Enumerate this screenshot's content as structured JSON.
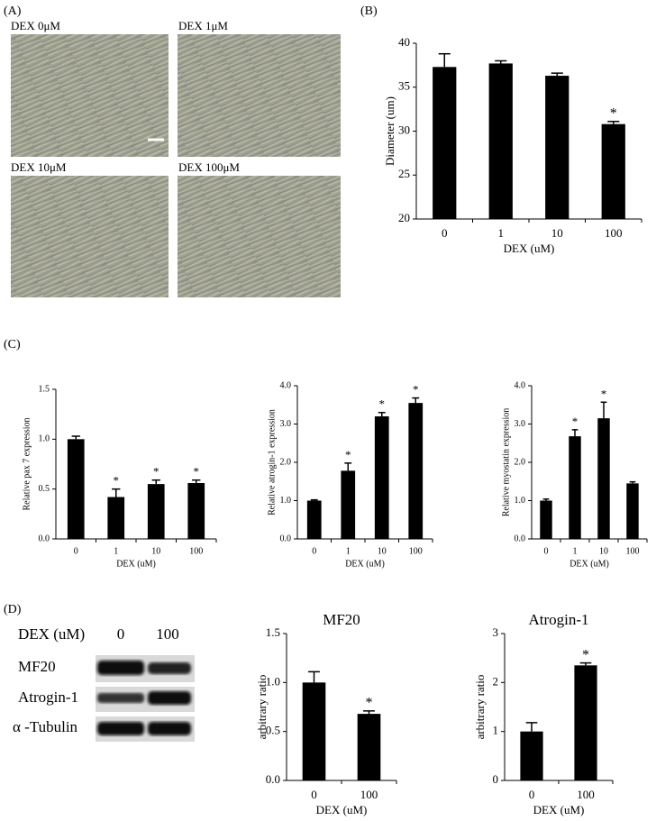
{
  "panel_labels": [
    "(A)",
    "(B)",
    "(C)",
    "(D)"
  ],
  "micrographs": [
    "DEX 0μM",
    "DEX 1μM",
    "DEX 10μM",
    "DEX 100μM"
  ],
  "blot": {
    "header": "DEX (uM)",
    "lanes": [
      "0",
      "100"
    ],
    "rows": [
      "MF20",
      "Atrogin-1",
      "α -Tubulin"
    ]
  },
  "chart_data": [
    {
      "type": "bar",
      "ylabel": "Diameter (um)",
      "xlabel": "DEX (uM)",
      "color": "#000000",
      "categories": [
        "0",
        "1",
        "10",
        "100"
      ],
      "values": [
        37.3,
        37.7,
        36.3,
        30.8
      ],
      "errors": [
        1.5,
        0.3,
        0.3,
        0.3
      ],
      "significance": [
        null,
        null,
        null,
        "*"
      ],
      "ylim": [
        20,
        40
      ],
      "yticks": [
        20,
        25,
        30,
        35,
        40
      ]
    },
    {
      "type": "bar",
      "ylabel": "Relative pax 7 expression",
      "xlabel": "DEX (uM)",
      "color": "#000000",
      "categories": [
        "0",
        "1",
        "10",
        "100"
      ],
      "values": [
        1.0,
        0.42,
        0.55,
        0.56
      ],
      "errors": [
        0.03,
        0.08,
        0.04,
        0.03
      ],
      "significance": [
        null,
        "*",
        "*",
        "*"
      ],
      "ylim": [
        0,
        1.5
      ],
      "yticks": [
        {
          "value": 0,
          "label": "0.0"
        },
        0.5,
        {
          "value": 1,
          "label": "1.0"
        },
        1.5
      ]
    },
    {
      "type": "bar",
      "ylabel": "Relative atrogin-1 expression",
      "xlabel": "DEX (uM)",
      "color": "#000000",
      "categories": [
        "0",
        "1",
        "10",
        "100"
      ],
      "values": [
        1.0,
        1.78,
        3.2,
        3.55
      ],
      "errors": [
        0.02,
        0.2,
        0.1,
        0.13
      ],
      "significance": [
        null,
        "*",
        "*",
        "*"
      ],
      "ylim": [
        0,
        4
      ],
      "yticks": [
        {
          "value": 0,
          "label": "0.0"
        },
        {
          "value": 1,
          "label": "1.0"
        },
        {
          "value": 2,
          "label": "2.0"
        },
        {
          "value": 3,
          "label": "3.0"
        },
        {
          "value": 4,
          "label": "4.0"
        }
      ]
    },
    {
      "type": "bar",
      "ylabel": "Relative myostatin expression",
      "xlabel": "DEX (uM)",
      "color": "#000000",
      "categories": [
        "0",
        "1",
        "10",
        "100"
      ],
      "values": [
        1.0,
        2.68,
        3.15,
        1.45
      ],
      "errors": [
        0.04,
        0.17,
        0.42,
        0.04
      ],
      "significance": [
        null,
        "*",
        "*",
        null
      ],
      "ylim": [
        0,
        4
      ],
      "yticks": [
        {
          "value": 0,
          "label": "0.0"
        },
        {
          "value": 1,
          "label": "1.0"
        },
        {
          "value": 2,
          "label": "2.0"
        },
        {
          "value": 3,
          "label": "3.0"
        },
        {
          "value": 4,
          "label": "4.0"
        }
      ]
    },
    {
      "type": "bar",
      "title": "MF20",
      "ylabel": "arbitrary ratio",
      "xlabel": "DEX (uM)",
      "color": "#000000",
      "categories": [
        "0",
        "100"
      ],
      "values": [
        1.0,
        0.68
      ],
      "errors": [
        0.11,
        0.03
      ],
      "significance": [
        null,
        "*"
      ],
      "ylim": [
        0,
        1.5
      ],
      "yticks": [
        {
          "value": 0,
          "label": "0.0"
        },
        0.5,
        {
          "value": 1,
          "label": "1.0"
        },
        1.5
      ]
    },
    {
      "type": "bar",
      "title": "Atrogin-1",
      "ylabel": "arbitrary ratio",
      "xlabel": "DEX (uM)",
      "color": "#000000",
      "categories": [
        "0",
        "100"
      ],
      "values": [
        1.0,
        2.35
      ],
      "errors": [
        0.18,
        0.05
      ],
      "significance": [
        null,
        "*"
      ],
      "ylim": [
        0,
        3
      ],
      "yticks": [
        0,
        1,
        2,
        3
      ]
    }
  ]
}
